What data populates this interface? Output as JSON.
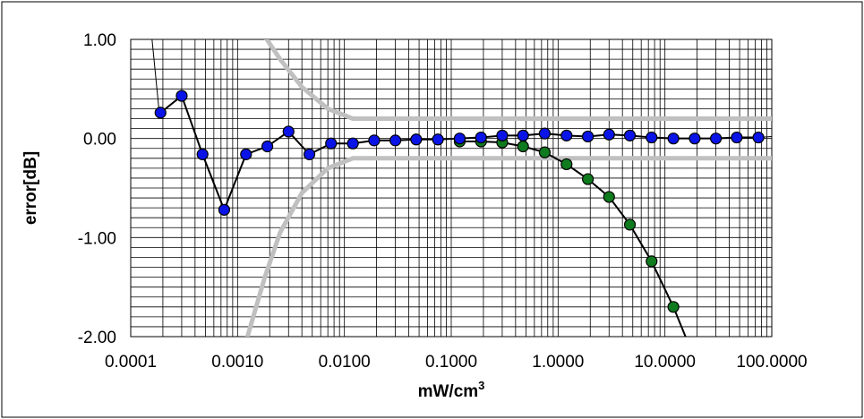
{
  "chart_data": {
    "type": "scatter",
    "title": "",
    "xlabel": "mW/cm",
    "xlabel_superscript": "3",
    "ylabel": "error[dB]",
    "x_scale": "log",
    "xlim": [
      0.0001,
      100
    ],
    "ylim": [
      -2.0,
      1.0
    ],
    "x_tick_labels": [
      "0.0001",
      "0.0010",
      "0.0100",
      "0.1000",
      "1.0000",
      "10.0000",
      "100.0000"
    ],
    "y_tick_labels": [
      "1.00",
      "0.00",
      "-1.00",
      "-2.00"
    ],
    "grid": true,
    "legend": "none",
    "series": [
      {
        "marker_color": "#0a14e6",
        "x": [
          0.00019,
          0.0003,
          0.00047,
          0.00075,
          0.0012,
          0.0019,
          0.003,
          0.0047,
          0.0075,
          0.012,
          0.019,
          0.03,
          0.047,
          0.075,
          0.12,
          0.19,
          0.3,
          0.47,
          0.75,
          1.2,
          1.9,
          3.0,
          4.7,
          7.5,
          12,
          19,
          30,
          47,
          75
        ],
        "y": [
          0.26,
          0.43,
          -0.16,
          -0.72,
          -0.16,
          -0.08,
          0.07,
          -0.16,
          -0.05,
          -0.05,
          -0.02,
          -0.02,
          -0.01,
          -0.01,
          0.0,
          0.01,
          0.03,
          0.03,
          0.05,
          0.03,
          0.02,
          0.04,
          0.03,
          0.01,
          0.0,
          0.0,
          0.0,
          0.01,
          0.01
        ]
      },
      {
        "marker_color": "#0f7a1e",
        "x": [
          0.12,
          0.19,
          0.3,
          0.47,
          0.75,
          1.2,
          1.9,
          3.0,
          4.7,
          7.5,
          12
        ],
        "y": [
          -0.03,
          -0.03,
          -0.04,
          -0.08,
          -0.14,
          -0.26,
          -0.41,
          -0.59,
          -0.87,
          -1.24,
          -1.7
        ]
      }
    ],
    "reference_bands": {
      "color": "#c0c0c0",
      "upper": {
        "x": [
          0.00175,
          0.0025,
          0.004,
          0.007,
          0.012,
          0.03,
          0.1,
          1,
          10,
          100
        ],
        "y": [
          1.05,
          0.8,
          0.52,
          0.3,
          0.2,
          0.2,
          0.2,
          0.2,
          0.2,
          0.2
        ]
      },
      "lower": {
        "x": [
          0.0012,
          0.0018,
          0.0025,
          0.004,
          0.007,
          0.012,
          0.03,
          0.1,
          1,
          10,
          100
        ],
        "y": [
          -2.05,
          -1.4,
          -0.95,
          -0.55,
          -0.3,
          -0.2,
          -0.2,
          -0.2,
          -0.2,
          -0.2,
          -0.2
        ]
      }
    },
    "thin_lines": {
      "color": "#000000",
      "left": {
        "x": [
          0.000155,
          0.000185
        ],
        "y": [
          1.1,
          0.26
        ]
      },
      "green_tail": {
        "x": [
          12,
          17
        ],
        "y": [
          -1.7,
          -2.1
        ]
      },
      "right_edge": {
        "x": [
          75,
          100
        ],
        "y": [
          0.01,
          0.02
        ]
      }
    }
  }
}
